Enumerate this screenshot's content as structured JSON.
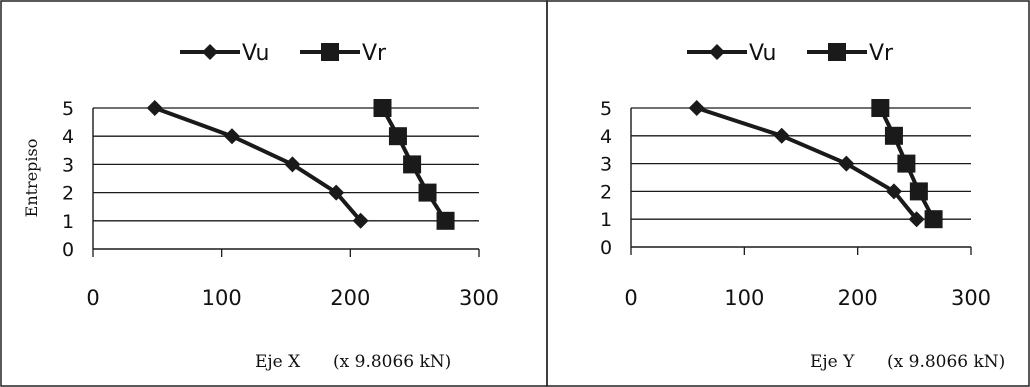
{
  "chart_data": [
    {
      "type": "line",
      "xlabel": "Eje X",
      "xunit": "(x 9.8066 kN)",
      "ylabel": "Entrepiso",
      "xlim": [
        0,
        300
      ],
      "ylim": [
        0,
        5
      ],
      "xticks": [
        "0",
        "100",
        "200",
        "300"
      ],
      "yticks": [
        "0",
        "1",
        "2",
        "3",
        "4",
        "5"
      ],
      "grid": "horizontal",
      "legend": "top",
      "series": [
        {
          "name": "Vu",
          "marker": "diamond",
          "x": [
            48,
            108,
            155,
            189,
            208
          ],
          "y": [
            5,
            4,
            3,
            2,
            1
          ]
        },
        {
          "name": "Vr",
          "marker": "square",
          "x": [
            225,
            237,
            248,
            260,
            274
          ],
          "y": [
            5,
            4,
            3,
            2,
            1
          ]
        }
      ]
    },
    {
      "type": "line",
      "xlabel": "Eje Y",
      "xunit": "(x 9.8066 kN)",
      "ylabel": "",
      "xlim": [
        0,
        300
      ],
      "ylim": [
        0,
        5
      ],
      "xticks": [
        "0",
        "100",
        "200",
        "300"
      ],
      "yticks": [
        "0",
        "1",
        "2",
        "3",
        "4",
        "5"
      ],
      "grid": "horizontal",
      "legend": "top",
      "series": [
        {
          "name": "Vu",
          "marker": "diamond",
          "x": [
            58,
            133,
            190,
            232,
            252
          ],
          "y": [
            5,
            4,
            3,
            2,
            1
          ]
        },
        {
          "name": "Vr",
          "marker": "square",
          "x": [
            220,
            232,
            243,
            254,
            267
          ],
          "y": [
            5,
            4,
            3,
            2,
            1
          ]
        }
      ]
    }
  ],
  "colors": {
    "line": "#1a1a1a",
    "grid": "#1a1a1a",
    "border": "#222222"
  }
}
